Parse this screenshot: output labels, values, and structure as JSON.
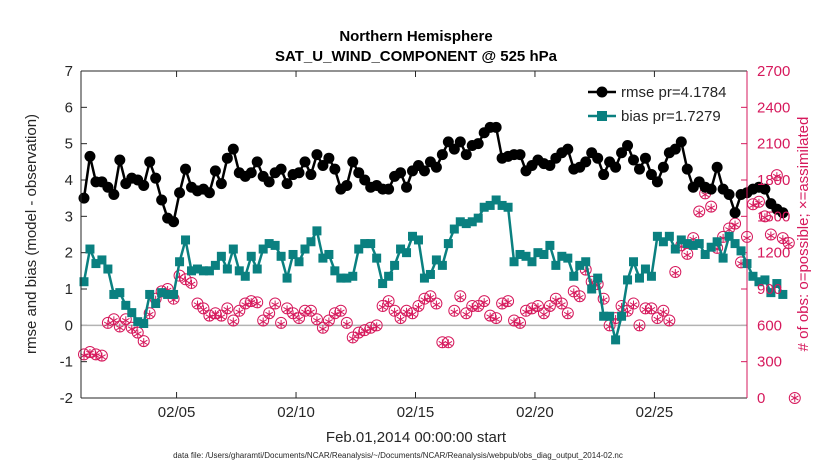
{
  "chart_data": {
    "type": "line",
    "title": "Northern Hemisphere",
    "subtitle": "SAT_U_WIND_COMPONENT @ 525 hPa",
    "xlabel": "Feb.01,2014 00:00:00 start",
    "ylabel": "rmse and bias (model - observation)",
    "ylabel_right": "# of obs: o=possible; ×=assimilated",
    "footnote": "data file: /Users/gharamti/Documents/NCAR/Reanalysis/~/Documents/NCAR/Reanalysis/webpub/obs_diag_output_2014-02.nc",
    "xlim": [
      1.0,
      28.875
    ],
    "ylim": [
      -2,
      7
    ],
    "ylim_right": [
      0,
      2700
    ],
    "x_ticks": [
      {
        "value": 5,
        "label": "02/05"
      },
      {
        "value": 10,
        "label": "02/10"
      },
      {
        "value": 15,
        "label": "02/15"
      },
      {
        "value": 20,
        "label": "02/20"
      },
      {
        "value": 25,
        "label": "02/25"
      }
    ],
    "y_ticks": [
      -2,
      -1,
      0,
      1,
      2,
      3,
      4,
      5,
      6,
      7
    ],
    "y_ticks_right": [
      0,
      300,
      600,
      900,
      1200,
      1500,
      1800,
      2100,
      2400,
      2700
    ],
    "legend_position": "top-right",
    "colors": {
      "rmse": "#000000",
      "bias": "#0a8080",
      "obs": "#d6195c",
      "zero_line": "#b3b3b3"
    },
    "series": [
      {
        "name": "rmse pr=4.1784",
        "axis": "left",
        "marker": "circle",
        "x_start": 1.125,
        "x_step": 0.25,
        "values": [
          3.5,
          4.65,
          3.95,
          3.95,
          3.8,
          3.6,
          4.55,
          3.9,
          4.05,
          4.0,
          3.85,
          4.5,
          4.05,
          3.45,
          2.95,
          2.85,
          3.65,
          4.3,
          3.8,
          3.7,
          3.75,
          3.65,
          4.25,
          3.9,
          4.6,
          4.85,
          4.2,
          4.1,
          4.2,
          4.5,
          4.1,
          3.95,
          4.2,
          4.3,
          3.9,
          4.15,
          4.2,
          4.5,
          4.15,
          4.7,
          4.4,
          4.6,
          4.3,
          3.75,
          3.85,
          4.5,
          4.2,
          4.0,
          3.8,
          3.85,
          3.75,
          3.75,
          4.1,
          4.2,
          3.8,
          4.25,
          4.4,
          4.25,
          4.5,
          4.35,
          4.7,
          5.05,
          4.85,
          5.05,
          4.7,
          4.95,
          5.0,
          5.3,
          5.45,
          5.45,
          4.6,
          4.65,
          4.7,
          4.7,
          4.25,
          4.4,
          4.55,
          4.45,
          4.4,
          4.6,
          4.75,
          4.85,
          4.3,
          4.35,
          4.5,
          4.75,
          4.6,
          4.15,
          4.5,
          4.35,
          4.75,
          4.95,
          4.55,
          4.3,
          4.6,
          4.15,
          3.95,
          4.35,
          4.75,
          4.85,
          5.05,
          4.3,
          3.8,
          3.95,
          3.8,
          3.75,
          4.35,
          3.75,
          3.6,
          3.1,
          3.6,
          3.65,
          3.75,
          3.8,
          3.75,
          3.35,
          3.2,
          3.1
        ]
      },
      {
        "name": "bias pr=1.7279",
        "axis": "left",
        "marker": "square",
        "x_start": 1.125,
        "x_step": 0.25,
        "values": [
          1.2,
          2.1,
          1.7,
          1.8,
          1.55,
          0.85,
          0.9,
          0.55,
          0.35,
          0.1,
          0.05,
          0.85,
          0.6,
          0.9,
          0.85,
          0.85,
          1.75,
          2.35,
          1.5,
          1.55,
          1.5,
          1.5,
          1.65,
          1.9,
          1.55,
          2.1,
          1.5,
          1.35,
          1.9,
          1.55,
          2.1,
          2.25,
          2.2,
          1.9,
          1.3,
          1.95,
          1.75,
          2.1,
          2.3,
          2.6,
          1.85,
          1.95,
          1.5,
          1.3,
          1.3,
          1.35,
          2.1,
          2.25,
          2.25,
          1.85,
          1.15,
          1.35,
          1.65,
          2.1,
          2.0,
          2.45,
          2.35,
          1.3,
          1.4,
          1.8,
          1.65,
          2.25,
          2.65,
          2.85,
          2.8,
          2.85,
          2.95,
          3.25,
          3.3,
          3.45,
          3.3,
          3.25,
          1.75,
          1.95,
          1.9,
          1.75,
          2.0,
          1.95,
          2.2,
          1.65,
          1.9,
          1.85,
          1.35,
          1.65,
          1.75,
          1.0,
          1.3,
          0.25,
          0.25,
          -0.4,
          0.25,
          1.25,
          1.75,
          1.3,
          1.55,
          1.35,
          2.45,
          2.3,
          2.45,
          2.1,
          2.35,
          2.25,
          2.2,
          2.25,
          1.95,
          2.15,
          2.3,
          1.85,
          2.45,
          2.25,
          2.05,
          1.7,
          1.35,
          1.2,
          1.25,
          0.9,
          1.15,
          0.85
        ]
      },
      {
        "name": "possible",
        "axis": "right",
        "marker": "open-circle",
        "x_start": 1.125,
        "x_step": 0.25,
        "values": [
          360,
          380,
          360,
          350,
          620,
          650,
          590,
          650,
          580,
          540,
          470,
          700,
          820,
          880,
          900,
          820,
          1010,
          980,
          950,
          780,
          740,
          680,
          700,
          680,
          740,
          640,
          720,
          780,
          800,
          790,
          640,
          700,
          780,
          620,
          740,
          700,
          660,
          720,
          720,
          650,
          580,
          640,
          700,
          720,
          620,
          500,
          540,
          560,
          580,
          600,
          760,
          800,
          720,
          660,
          720,
          700,
          760,
          820,
          840,
          780,
          460,
          460,
          720,
          840,
          700,
          760,
          760,
          800,
          680,
          660,
          780,
          800,
          640,
          620,
          720,
          740,
          760,
          700,
          760,
          820,
          780,
          700,
          880,
          840,
          1060,
          960,
          940,
          820,
          600,
          660,
          760,
          720,
          780,
          600,
          740,
          740,
          660,
          720,
          640,
          1040,
          1260,
          1190,
          1320,
          1540,
          1690,
          1580,
          1240,
          1330,
          1400,
          1440,
          1120,
          1330,
          1600,
          1620,
          1500,
          1350,
          1840,
          1320,
          1280,
          0
        ]
      },
      {
        "name": "assimilated",
        "axis": "right",
        "marker": "star",
        "x_start": 1.125,
        "x_step": 0.25,
        "values": [
          350,
          370,
          350,
          340,
          610,
          640,
          580,
          640,
          570,
          530,
          460,
          690,
          810,
          870,
          890,
          810,
          1000,
          970,
          940,
          770,
          730,
          670,
          690,
          670,
          730,
          630,
          710,
          770,
          790,
          780,
          630,
          690,
          770,
          610,
          730,
          690,
          650,
          710,
          710,
          640,
          570,
          630,
          690,
          710,
          610,
          490,
          530,
          550,
          570,
          590,
          750,
          790,
          710,
          650,
          710,
          690,
          750,
          810,
          830,
          770,
          450,
          450,
          710,
          830,
          690,
          750,
          750,
          790,
          670,
          650,
          770,
          790,
          630,
          610,
          710,
          730,
          750,
          690,
          750,
          810,
          770,
          690,
          870,
          830,
          1050,
          950,
          930,
          810,
          590,
          650,
          750,
          710,
          770,
          590,
          730,
          730,
          650,
          710,
          630,
          1030,
          1250,
          1180,
          1310,
          1530,
          1680,
          1570,
          1230,
          1320,
          1390,
          1430,
          1110,
          1320,
          1590,
          1610,
          1490,
          1340,
          1830,
          1310,
          1270,
          0
        ]
      }
    ]
  }
}
